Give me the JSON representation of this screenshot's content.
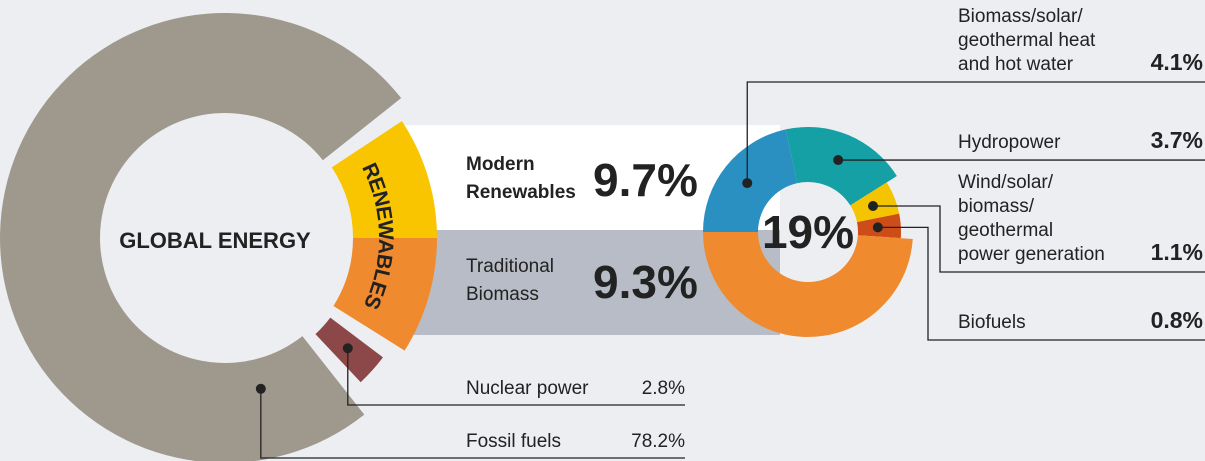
{
  "chart_data": [
    {
      "type": "donut",
      "title": "GLOBAL ENERGY",
      "group_label": "RENEWABLES",
      "categories": [
        "Fossil fuels",
        "Nuclear power",
        "Modern\nRenewables",
        "Traditional\nBiomass"
      ],
      "values": [
        78.2,
        2.8,
        9.7,
        9.3
      ],
      "value_labels": [
        "78.2%",
        "2.8%",
        "9.7%",
        "9.3%"
      ],
      "colors": [
        "#9e998c",
        "#8c4848",
        "#f9c400",
        "#ef8a2e"
      ]
    },
    {
      "type": "donut",
      "total": 19,
      "total_label": "19%",
      "categories": [
        "Biomass/solar/\ngeothermal heat\nand hot water",
        "Hydropower",
        "Wind/solar/\nbiomass/\ngeothermal\npower generation",
        "Biofuels"
      ],
      "values": [
        4.1,
        3.7,
        1.1,
        0.8
      ],
      "value_labels": [
        "4.1%",
        "3.7%",
        "1.1%",
        "0.8%"
      ],
      "colors": [
        "#2a8fc1",
        "#14a0a4",
        "#f5c400",
        "#cc4d17"
      ]
    }
  ]
}
